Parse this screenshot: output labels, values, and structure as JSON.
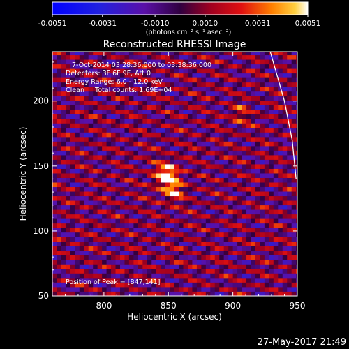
{
  "chart_data": {
    "type": "heatmap",
    "title": "Reconstructed RHESSI Image",
    "xlabel": "Heliocentric X (arcsec)",
    "ylabel": "Heliocentric Y (arcsec)",
    "xlim": [
      760,
      950
    ],
    "ylim": [
      50,
      238
    ],
    "x_ticks": [
      800,
      850,
      900,
      950
    ],
    "y_ticks": [
      50,
      100,
      150,
      200
    ],
    "colorbar": {
      "min": -0.0051,
      "max": 0.0051,
      "tick_values": [
        -0.0051,
        -0.0031,
        -0.001,
        0.001,
        0.0031,
        0.0051
      ],
      "tick_labels": [
        "-0.0051",
        "-0.0031",
        "-0.0010",
        "0.0010",
        "0.0031",
        "0.0051"
      ],
      "unit_label": "(photons cm⁻² s⁻¹ asec⁻²)"
    },
    "annotations": [
      "7-Oct-2014 03:28:36.000 to 03:38:36.000",
      "Detectors: 3F 6F 9F, Att 0",
      "Energy Range: 6.0 - 12.0 keV",
      "Clean     Total counts: 1.69E+04"
    ],
    "peak_text": "Position of Peak = [847,141]",
    "peak": {
      "x": 847,
      "y": 141
    },
    "secondary_sources": [
      {
        "x": 852,
        "y": 128
      },
      {
        "x": 904,
        "y": 188
      }
    ],
    "limb": [
      {
        "x": 929,
        "y": 238
      },
      {
        "x": 940,
        "y": 200
      },
      {
        "x": 946,
        "y": 170
      },
      {
        "x": 949,
        "y": 140
      }
    ]
  },
  "footer": {
    "timestamp": "27-May-2017 21:49"
  },
  "colors": {
    "background": "#000000",
    "axes": "#ffffff"
  }
}
